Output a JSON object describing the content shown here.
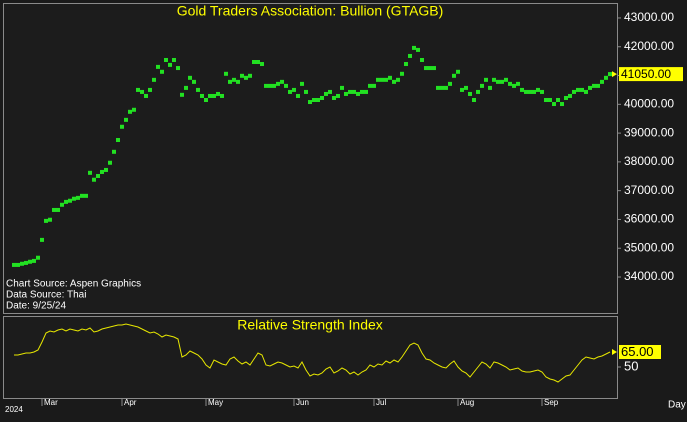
{
  "chart_data": [
    {
      "type": "scatter",
      "title": "Gold Traders Association: Bullion (GTAGB)",
      "annotations": [
        "Chart Source: Aspen Graphics",
        "Data Source: Thai",
        "Date: 9/25/24"
      ],
      "color": "#22e022",
      "values": [
        34420,
        34420,
        34460,
        34490,
        34530,
        34560,
        34670,
        35290,
        35950,
        35990,
        36330,
        36330,
        36510,
        36610,
        36650,
        36720,
        36750,
        36820,
        36820,
        37620,
        37380,
        37510,
        37650,
        37720,
        37970,
        38350,
        38760,
        39220,
        39460,
        39740,
        39810,
        40500,
        40430,
        40290,
        40500,
        40850,
        41300,
        41130,
        41540,
        41370,
        41540,
        41260,
        40330,
        40570,
        40920,
        40780,
        40500,
        40290,
        40150,
        40290,
        40290,
        40360,
        40290,
        41060,
        40780,
        40850,
        40780,
        40990,
        40920,
        40990,
        41470,
        41470,
        41400,
        40640,
        40640,
        40640,
        40710,
        40780,
        40640,
        40430,
        40500,
        40290,
        40710,
        40430,
        40080,
        40150,
        40150,
        40220,
        40360,
        40430,
        40220,
        40290,
        40570,
        40360,
        40430,
        40430,
        40360,
        40430,
        40430,
        40640,
        40640,
        40850,
        40850,
        40850,
        40920,
        40780,
        40850,
        41060,
        41400,
        41680,
        41960,
        41890,
        41540,
        41260,
        41260,
        41260,
        40570,
        40570,
        40570,
        40710,
        40990,
        41130,
        40500,
        40570,
        40360,
        40150,
        40430,
        40640,
        40850,
        40570,
        40850,
        40780,
        40780,
        40850,
        40710,
        40640,
        40710,
        40500,
        40430,
        40430,
        40430,
        40500,
        40430,
        40150,
        40150,
        40010,
        40150,
        40010,
        40220,
        40290,
        40430,
        40500,
        40500,
        40430,
        40570,
        40640,
        40640,
        40780,
        40920,
        41050
      ],
      "ylim": [
        32750,
        43520
      ],
      "yticks": [
        {
          "value": 34000,
          "label": "34000.00"
        },
        {
          "value": 35000,
          "label": "35000.00"
        },
        {
          "value": 36000,
          "label": "36000.00"
        },
        {
          "value": 37000,
          "label": "37000.00"
        },
        {
          "value": 38000,
          "label": "38000.00"
        },
        {
          "value": 39000,
          "label": "39000.00"
        },
        {
          "value": 40000,
          "label": "40000.00"
        },
        {
          "value": 41000,
          "label": "41000.00"
        },
        {
          "value": 42000,
          "label": "42000.00"
        },
        {
          "value": 43000,
          "label": "43000.00"
        }
      ],
      "current_marker": {
        "value": 41050,
        "label": "41050.00"
      },
      "marker_color": "#ffff00"
    },
    {
      "type": "line",
      "title": "Relative Strength Index",
      "color": "#e8e800",
      "categories": [
        null,
        null,
        null,
        null,
        null,
        null,
        null,
        "Mar",
        null,
        null,
        null,
        null,
        null,
        null,
        null,
        null,
        null,
        null,
        null,
        null,
        null,
        null,
        null,
        null,
        null,
        null,
        null,
        "Apr",
        null,
        null,
        null,
        null,
        null,
        null,
        null,
        null,
        null,
        null,
        null,
        null,
        null,
        null,
        null,
        null,
        null,
        null,
        null,
        null,
        "May",
        null,
        null,
        null,
        null,
        null,
        null,
        null,
        null,
        null,
        null,
        null,
        null,
        null,
        null,
        null,
        null,
        null,
        null,
        null,
        null,
        null,
        "Jun",
        null,
        null,
        null,
        null,
        null,
        null,
        null,
        null,
        null,
        null,
        null,
        null,
        null,
        null,
        null,
        null,
        null,
        null,
        null,
        "Jul",
        null,
        null,
        null,
        null,
        null,
        null,
        null,
        null,
        null,
        null,
        null,
        null,
        null,
        null,
        null,
        null,
        null,
        null,
        null,
        null,
        "Aug",
        null,
        null,
        null,
        null,
        null,
        null,
        null,
        null,
        null,
        null,
        null,
        null,
        null,
        null,
        null,
        null,
        null,
        null,
        null,
        null,
        "Sep",
        null,
        null,
        null,
        null,
        null,
        null,
        null,
        null,
        null,
        null,
        null,
        null,
        null,
        null,
        null,
        null,
        null
      ],
      "values": [
        62,
        62,
        63,
        64,
        64,
        65,
        67,
        75,
        84,
        86,
        85,
        87,
        88,
        86,
        88,
        87,
        86,
        88,
        87,
        89,
        85,
        86,
        88,
        89,
        90,
        91,
        92,
        92,
        93,
        92,
        91,
        90,
        88,
        86,
        84,
        85,
        83,
        80,
        82,
        81,
        80,
        78,
        60,
        62,
        66,
        64,
        62,
        58,
        52,
        49,
        57,
        55,
        53,
        52,
        58,
        60,
        56,
        53,
        55,
        52,
        58,
        64,
        62,
        52,
        51,
        53,
        55,
        54,
        52,
        50,
        51,
        49,
        55,
        47,
        41,
        43,
        42,
        44,
        48,
        50,
        44,
        46,
        49,
        47,
        43,
        45,
        42,
        45,
        47,
        52,
        50,
        53,
        52,
        56,
        54,
        57,
        55,
        60,
        66,
        72,
        74,
        72,
        64,
        58,
        57,
        54,
        52,
        50,
        49,
        53,
        56,
        50,
        46,
        44,
        40,
        45,
        50,
        55,
        53,
        49,
        55,
        54,
        52,
        50,
        47,
        48,
        49,
        46,
        45,
        45,
        46,
        47,
        45,
        40,
        38,
        37,
        35,
        38,
        41,
        42,
        47,
        52,
        57,
        60,
        59,
        58,
        60,
        61,
        63,
        65
      ],
      "ylim": [
        19,
        101
      ],
      "yticks": [
        50
      ],
      "current_marker": {
        "value": 65,
        "label": "65.00"
      },
      "marker_color": "#ffff00",
      "year_label": "2024",
      "x_axis_label": "Day"
    }
  ]
}
